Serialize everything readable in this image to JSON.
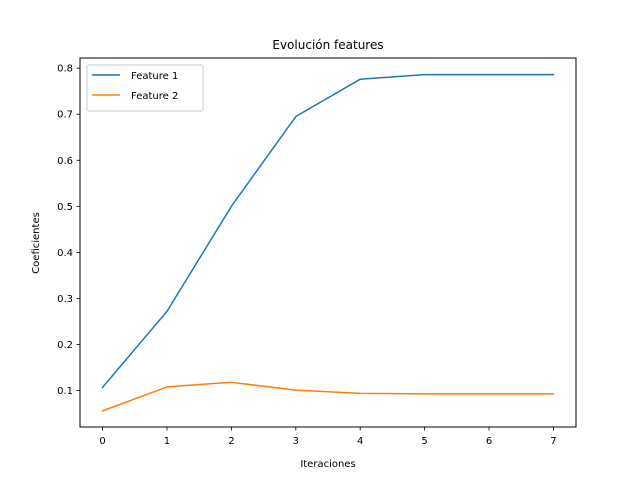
{
  "chart_data": {
    "type": "line",
    "title": "Evolución features",
    "xlabel": "Iteraciones",
    "ylabel": "Coeficientes",
    "x": [
      0,
      1,
      2,
      3,
      4,
      5,
      6,
      7
    ],
    "xticks": [
      "0",
      "1",
      "2",
      "3",
      "4",
      "5",
      "6",
      "7"
    ],
    "yticks": [
      "0.1",
      "0.2",
      "0.3",
      "0.4",
      "0.5",
      "0.6",
      "0.7",
      "0.8"
    ],
    "xlim": [
      -0.35,
      7.35
    ],
    "ylim": [
      0.021,
      0.822
    ],
    "grid": false,
    "legend_position": "top-left",
    "series": [
      {
        "name": "Feature 1",
        "color": "#1f77b4",
        "values": [
          0.107,
          0.272,
          0.5,
          0.695,
          0.776,
          0.786,
          0.786,
          0.786
        ]
      },
      {
        "name": "Feature 2",
        "color": "#ff7f0e",
        "values": [
          0.056,
          0.108,
          0.118,
          0.101,
          0.094,
          0.093,
          0.093,
          0.093
        ]
      }
    ]
  }
}
